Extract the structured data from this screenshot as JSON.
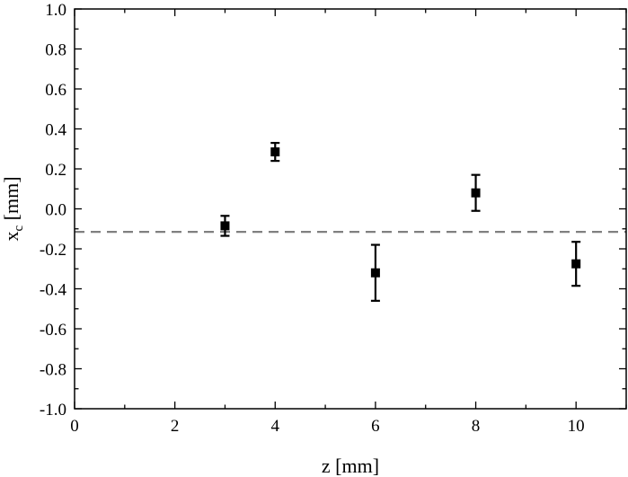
{
  "chart_data": {
    "type": "scatter",
    "xlabel": "z [mm]",
    "ylabel_main": "x",
    "ylabel_sub": "c",
    "ylabel_unit": " [mm]",
    "xlim": [
      0,
      11
    ],
    "ylim": [
      -1.0,
      1.0
    ],
    "x_ticks": [
      0,
      2,
      4,
      6,
      8,
      10
    ],
    "x_tick_labels": [
      "0",
      "2",
      "4",
      "6",
      "8",
      "10"
    ],
    "x_minor_step": 1,
    "y_ticks": [
      -1.0,
      -0.8,
      -0.6,
      -0.4,
      -0.2,
      0.0,
      0.2,
      0.4,
      0.6,
      0.8,
      1.0
    ],
    "y_tick_labels": [
      "-1.0",
      "-0.8",
      "-0.6",
      "-0.4",
      "-0.2",
      "0.0",
      "0.2",
      "0.4",
      "0.6",
      "0.8",
      "1.0"
    ],
    "y_minor_step": 0.1,
    "grid": false,
    "legend": "none",
    "series": [
      {
        "marker": "square",
        "color": "#000000",
        "x": [
          3,
          4,
          6,
          8,
          10
        ],
        "y": [
          -0.085,
          0.285,
          -0.32,
          0.08,
          -0.275
        ],
        "yerr": [
          0.05,
          0.045,
          0.14,
          0.09,
          0.11
        ]
      }
    ],
    "reference_line": {
      "y": -0.115,
      "style": "dashed",
      "color": "#808080"
    }
  }
}
